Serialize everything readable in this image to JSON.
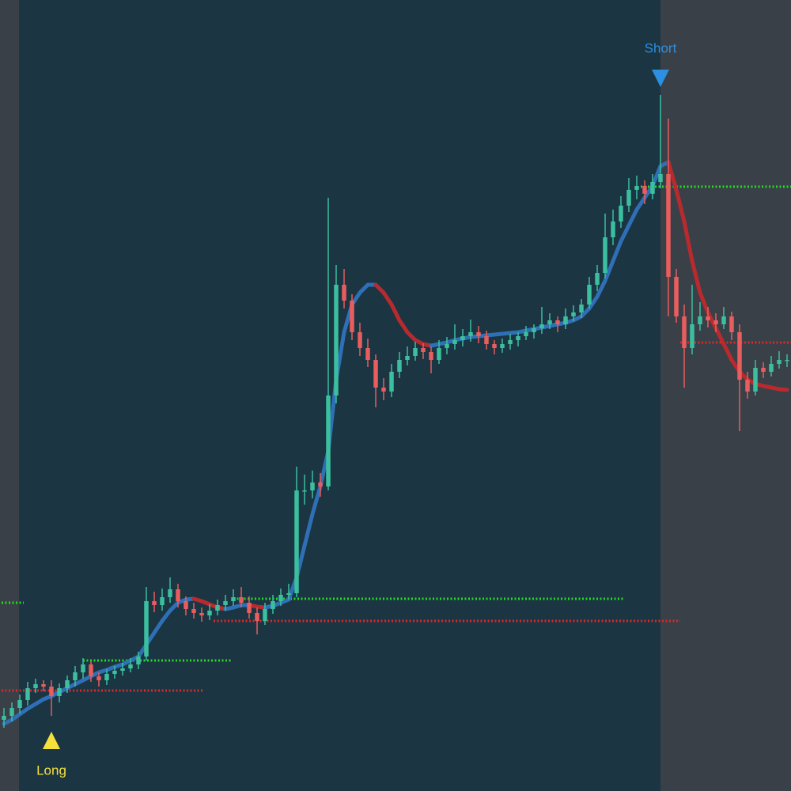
{
  "chart_data": {
    "type": "candlestick",
    "xlim": [
      -0.5,
      99.5
    ],
    "ylim": [
      0,
      1000
    ],
    "up_color": "#3bbf9f",
    "down_color": "#e85d5d",
    "ohlc": [
      [
        90,
        105,
        80,
        95
      ],
      [
        95,
        112,
        88,
        105
      ],
      [
        105,
        122,
        98,
        115
      ],
      [
        115,
        138,
        108,
        130
      ],
      [
        130,
        142,
        124,
        135
      ],
      [
        135,
        140,
        126,
        132
      ],
      [
        132,
        140,
        95,
        120
      ],
      [
        120,
        136,
        112,
        130
      ],
      [
        130,
        146,
        124,
        140
      ],
      [
        140,
        158,
        132,
        150
      ],
      [
        150,
        168,
        142,
        160
      ],
      [
        160,
        164,
        138,
        145
      ],
      [
        145,
        150,
        132,
        140
      ],
      [
        140,
        154,
        134,
        148
      ],
      [
        148,
        158,
        142,
        152
      ],
      [
        152,
        162,
        146,
        155
      ],
      [
        155,
        168,
        150,
        160
      ],
      [
        160,
        176,
        154,
        170
      ],
      [
        170,
        258,
        165,
        240
      ],
      [
        240,
        252,
        226,
        235
      ],
      [
        235,
        256,
        228,
        245
      ],
      [
        245,
        270,
        238,
        255
      ],
      [
        255,
        262,
        232,
        240
      ],
      [
        240,
        246,
        222,
        230
      ],
      [
        230,
        238,
        218,
        225
      ],
      [
        225,
        232,
        214,
        222
      ],
      [
        222,
        236,
        216,
        228
      ],
      [
        228,
        242,
        222,
        235
      ],
      [
        235,
        248,
        228,
        240
      ],
      [
        240,
        255,
        234,
        245
      ],
      [
        245,
        258,
        232,
        238
      ],
      [
        238,
        246,
        218,
        225
      ],
      [
        225,
        232,
        198,
        215
      ],
      [
        215,
        238,
        210,
        230
      ],
      [
        230,
        248,
        224,
        240
      ],
      [
        240,
        256,
        234,
        248
      ],
      [
        248,
        262,
        242,
        250
      ],
      [
        250,
        410,
        245,
        380
      ],
      [
        380,
        400,
        362,
        380
      ],
      [
        380,
        405,
        370,
        390
      ],
      [
        390,
        402,
        372,
        385
      ],
      [
        385,
        750,
        380,
        500
      ],
      [
        500,
        665,
        490,
        640
      ],
      [
        640,
        660,
        610,
        620
      ],
      [
        620,
        628,
        570,
        580
      ],
      [
        580,
        592,
        550,
        560
      ],
      [
        560,
        572,
        536,
        545
      ],
      [
        545,
        552,
        485,
        510
      ],
      [
        510,
        522,
        494,
        505
      ],
      [
        505,
        540,
        498,
        530
      ],
      [
        530,
        555,
        522,
        545
      ],
      [
        545,
        562,
        538,
        550
      ],
      [
        550,
        568,
        544,
        560
      ],
      [
        560,
        566,
        546,
        555
      ],
      [
        555,
        562,
        528,
        545
      ],
      [
        545,
        570,
        540,
        560
      ],
      [
        560,
        574,
        552,
        565
      ],
      [
        565,
        590,
        558,
        570
      ],
      [
        570,
        584,
        562,
        575
      ],
      [
        575,
        596,
        568,
        580
      ],
      [
        580,
        588,
        566,
        575
      ],
      [
        575,
        582,
        558,
        565
      ],
      [
        565,
        570,
        552,
        560
      ],
      [
        560,
        572,
        554,
        565
      ],
      [
        565,
        578,
        558,
        570
      ],
      [
        570,
        580,
        562,
        575
      ],
      [
        575,
        588,
        570,
        580
      ],
      [
        580,
        590,
        572,
        585
      ],
      [
        585,
        612,
        578,
        590
      ],
      [
        590,
        604,
        584,
        595
      ],
      [
        595,
        600,
        580,
        590
      ],
      [
        590,
        610,
        584,
        600
      ],
      [
        600,
        614,
        594,
        605
      ],
      [
        605,
        622,
        598,
        615
      ],
      [
        615,
        650,
        610,
        640
      ],
      [
        640,
        665,
        632,
        655
      ],
      [
        655,
        730,
        648,
        700
      ],
      [
        700,
        735,
        690,
        720
      ],
      [
        720,
        752,
        712,
        740
      ],
      [
        740,
        775,
        732,
        760
      ],
      [
        760,
        778,
        748,
        765
      ],
      [
        765,
        772,
        742,
        755
      ],
      [
        755,
        780,
        748,
        770
      ],
      [
        770,
        880,
        762,
        780
      ],
      [
        780,
        850,
        600,
        650
      ],
      [
        650,
        660,
        592,
        600
      ],
      [
        600,
        615,
        510,
        560
      ],
      [
        560,
        640,
        552,
        590
      ],
      [
        590,
        618,
        582,
        600
      ],
      [
        600,
        612,
        586,
        595
      ],
      [
        595,
        604,
        580,
        590
      ],
      [
        590,
        612,
        584,
        600
      ],
      [
        600,
        606,
        570,
        580
      ],
      [
        580,
        590,
        455,
        520
      ],
      [
        520,
        530,
        496,
        505
      ],
      [
        505,
        545,
        500,
        535
      ],
      [
        535,
        542,
        522,
        530
      ],
      [
        530,
        550,
        524,
        540
      ],
      [
        540,
        556,
        534,
        545
      ],
      [
        545,
        552,
        536,
        545
      ]
    ],
    "ma": {
      "rising_color": "#2f6fb5",
      "falling_color": "#b82a2e",
      "values": [
        85,
        90,
        97,
        104,
        110,
        116,
        120,
        125,
        130,
        135,
        140,
        145,
        150,
        153,
        157,
        160,
        165,
        170,
        185,
        200,
        215,
        228,
        238,
        242,
        243,
        240,
        236,
        232,
        230,
        232,
        235,
        235,
        233,
        232,
        234,
        238,
        242,
        270,
        310,
        350,
        385,
        430,
        520,
        580,
        615,
        630,
        640,
        640,
        630,
        615,
        595,
        580,
        570,
        565,
        563,
        565,
        567,
        570,
        572,
        574,
        575,
        576,
        577,
        578,
        579,
        580,
        582,
        584,
        586,
        588,
        590,
        592,
        595,
        600,
        610,
        625,
        645,
        670,
        695,
        715,
        735,
        750,
        765,
        790,
        795,
        760,
        720,
        670,
        630,
        605,
        585,
        565,
        545,
        530,
        520,
        515,
        512,
        510,
        508,
        507
      ]
    },
    "levels": [
      {
        "value": 238,
        "x": [
          -3,
          2.5
        ],
        "color": "#22dd22"
      },
      {
        "value": 127,
        "x": [
          -3,
          25.3
        ],
        "color": "#e02828"
      },
      {
        "value": 165,
        "x": [
          10,
          28.8
        ],
        "color": "#22dd22"
      },
      {
        "value": 243,
        "x": [
          29,
          78.5
        ],
        "color": "#22dd22"
      },
      {
        "value": 215,
        "x": [
          26.5,
          85.5
        ],
        "color": "#e02828"
      },
      {
        "value": 764,
        "x": [
          80.5,
          99.5
        ],
        "color": "#22dd22"
      },
      {
        "value": 567,
        "x": [
          85.5,
          99.5
        ],
        "color": "#e02828"
      }
    ],
    "signals": [
      {
        "label": "Long",
        "index": 6,
        "color": "#f5e13a"
      },
      {
        "label": "Short",
        "index": 83,
        "color": "#2c8fe0"
      }
    ]
  }
}
